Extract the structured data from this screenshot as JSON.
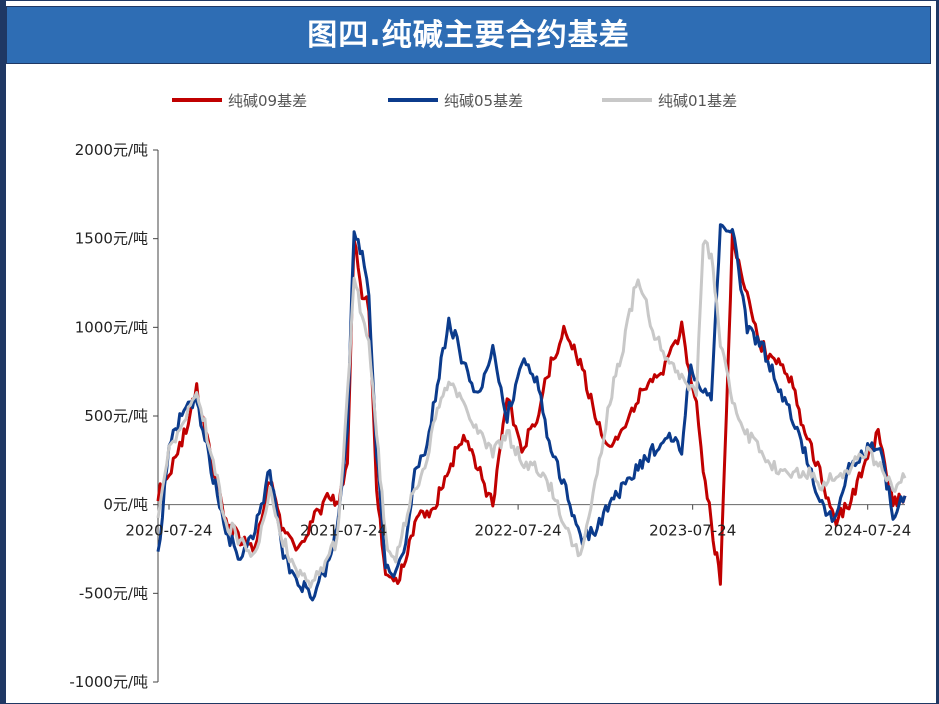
{
  "header": {
    "title": "图四.纯碱主要合约基差"
  },
  "colors": {
    "banner": "#2e6db4",
    "s09": "#c00000",
    "s05": "#0b3b8c",
    "s01": "#c8c8c8"
  },
  "chart_data": {
    "type": "line",
    "title": "图四.纯碱主要合约基差",
    "xlabel": "",
    "ylabel": "",
    "ylim": [
      -1000,
      2000
    ],
    "yticks": [
      2000,
      1500,
      1000,
      500,
      0,
      -500,
      -1000
    ],
    "ytick_labels": [
      "2000元/吨",
      "1500元/吨",
      "1000元/吨",
      "500元/吨",
      "0元/吨",
      "-500元/吨",
      "-1000元/吨"
    ],
    "xlim": [
      "2020-07-01",
      "2024-10-10"
    ],
    "xticks": [
      "2020-07-24",
      "2021-07-24",
      "2022-07-24",
      "2023-07-24",
      "2024-07-24"
    ],
    "legend_position": "top",
    "grid": false,
    "series": [
      {
        "name": "纯碱09基差",
        "color": "#c00000",
        "x": [
          "2020-07-01",
          "2020-07-24",
          "2020-08-20",
          "2020-09-20",
          "2020-10-20",
          "2020-11-20",
          "2020-12-20",
          "2021-01-20",
          "2021-02-20",
          "2021-03-20",
          "2021-04-20",
          "2021-05-20",
          "2021-06-20",
          "2021-07-10",
          "2021-08-01",
          "2021-08-15",
          "2021-09-01",
          "2021-09-15",
          "2021-10-01",
          "2021-10-20",
          "2021-11-10",
          "2021-12-01",
          "2021-12-20",
          "2022-01-10",
          "2022-02-01",
          "2022-03-01",
          "2022-04-01",
          "2022-05-01",
          "2022-06-01",
          "2022-07-01",
          "2022-08-01",
          "2022-09-01",
          "2022-10-01",
          "2022-11-01",
          "2022-12-01",
          "2023-01-01",
          "2023-02-01",
          "2023-03-01",
          "2023-04-01",
          "2023-05-01",
          "2023-06-01",
          "2023-07-01",
          "2023-07-20",
          "2023-08-01",
          "2023-08-15",
          "2023-09-01",
          "2023-09-20",
          "2023-10-15",
          "2023-11-15",
          "2023-12-15",
          "2024-01-15",
          "2024-02-15",
          "2024-03-15",
          "2024-04-15",
          "2024-05-15",
          "2024-06-15",
          "2024-07-15",
          "2024-08-15",
          "2024-09-15",
          "2024-10-10"
        ],
        "values": [
          60,
          180,
          350,
          650,
          250,
          -100,
          -200,
          -250,
          150,
          -150,
          -250,
          -100,
          50,
          0,
          200,
          1500,
          1200,
          1100,
          100,
          -400,
          -450,
          -300,
          -100,
          -50,
          0,
          200,
          400,
          200,
          0,
          600,
          300,
          500,
          800,
          1000,
          800,
          500,
          300,
          450,
          600,
          700,
          800,
          1000,
          700,
          600,
          200,
          -100,
          -450,
          1500,
          1200,
          900,
          800,
          700,
          400,
          200,
          -100,
          0,
          200,
          400,
          0,
          50
        ]
      },
      {
        "name": "纯碱05基差",
        "color": "#0b3b8c",
        "x": [
          "2020-07-01",
          "2020-07-24",
          "2020-08-20",
          "2020-09-20",
          "2020-10-20",
          "2020-11-20",
          "2020-12-20",
          "2021-01-20",
          "2021-02-20",
          "2021-03-20",
          "2021-04-20",
          "2021-05-20",
          "2021-06-20",
          "2021-07-10",
          "2021-08-01",
          "2021-08-15",
          "2021-09-01",
          "2021-09-15",
          "2021-10-01",
          "2021-10-20",
          "2021-11-10",
          "2021-12-01",
          "2021-12-20",
          "2022-01-10",
          "2022-02-01",
          "2022-03-01",
          "2022-04-01",
          "2022-05-01",
          "2022-06-01",
          "2022-07-01",
          "2022-08-01",
          "2022-09-01",
          "2022-10-01",
          "2022-11-01",
          "2022-12-01",
          "2023-01-01",
          "2023-02-01",
          "2023-03-01",
          "2023-04-01",
          "2023-05-01",
          "2023-06-01",
          "2023-07-01",
          "2023-07-20",
          "2023-08-01",
          "2023-08-15",
          "2023-09-01",
          "2023-09-20",
          "2023-10-15",
          "2023-11-15",
          "2023-12-15",
          "2024-01-15",
          "2024-02-15",
          "2024-03-15",
          "2024-04-15",
          "2024-05-15",
          "2024-06-15",
          "2024-07-15",
          "2024-08-15",
          "2024-09-15",
          "2024-10-10"
        ],
        "values": [
          -300,
          350,
          500,
          600,
          200,
          -150,
          -300,
          -150,
          200,
          -300,
          -450,
          -500,
          -350,
          -100,
          400,
          1550,
          1400,
          1200,
          300,
          -350,
          -400,
          -250,
          200,
          300,
          600,
          1050,
          800,
          600,
          900,
          500,
          800,
          700,
          300,
          100,
          -200,
          -150,
          0,
          100,
          200,
          300,
          400,
          300,
          800,
          700,
          650,
          600,
          1600,
          1550,
          1000,
          900,
          700,
          500,
          300,
          0,
          -100,
          200,
          300,
          350,
          -50,
          50
        ]
      },
      {
        "name": "纯碱01基差",
        "color": "#c8c8c8",
        "x": [
          "2020-07-01",
          "2020-07-24",
          "2020-08-20",
          "2020-09-20",
          "2020-10-20",
          "2020-11-20",
          "2020-12-20",
          "2021-01-20",
          "2021-02-20",
          "2021-03-20",
          "2021-04-20",
          "2021-05-20",
          "2021-06-20",
          "2021-07-10",
          "2021-08-01",
          "2021-08-15",
          "2021-09-01",
          "2021-09-15",
          "2021-10-01",
          "2021-10-20",
          "2021-11-10",
          "2021-12-01",
          "2021-12-20",
          "2022-01-10",
          "2022-02-01",
          "2022-03-01",
          "2022-04-01",
          "2022-05-01",
          "2022-06-01",
          "2022-07-01",
          "2022-08-01",
          "2022-09-01",
          "2022-10-01",
          "2022-11-01",
          "2022-12-01",
          "2023-01-01",
          "2023-02-01",
          "2023-03-01",
          "2023-04-01",
          "2023-05-01",
          "2023-06-01",
          "2023-07-01",
          "2023-07-20",
          "2023-08-01",
          "2023-08-15",
          "2023-09-01",
          "2023-09-20",
          "2023-10-15",
          "2023-11-15",
          "2023-12-15",
          "2024-01-15",
          "2024-02-15",
          "2024-03-15",
          "2024-04-15",
          "2024-05-15",
          "2024-06-15",
          "2024-07-15",
          "2024-08-15",
          "2024-09-15",
          "2024-10-10"
        ],
        "values": [
          -100,
          300,
          450,
          650,
          300,
          -100,
          -200,
          -300,
          100,
          -200,
          -400,
          -450,
          -300,
          -200,
          600,
          1300,
          1050,
          900,
          400,
          -200,
          -300,
          -100,
          100,
          200,
          500,
          700,
          600,
          400,
          300,
          400,
          250,
          200,
          100,
          -150,
          -300,
          100,
          600,
          900,
          1300,
          1000,
          800,
          700,
          650,
          600,
          1500,
          1400,
          900,
          600,
          400,
          300,
          200,
          150,
          200,
          100,
          150,
          200,
          300,
          250,
          100,
          150
        ]
      }
    ]
  }
}
